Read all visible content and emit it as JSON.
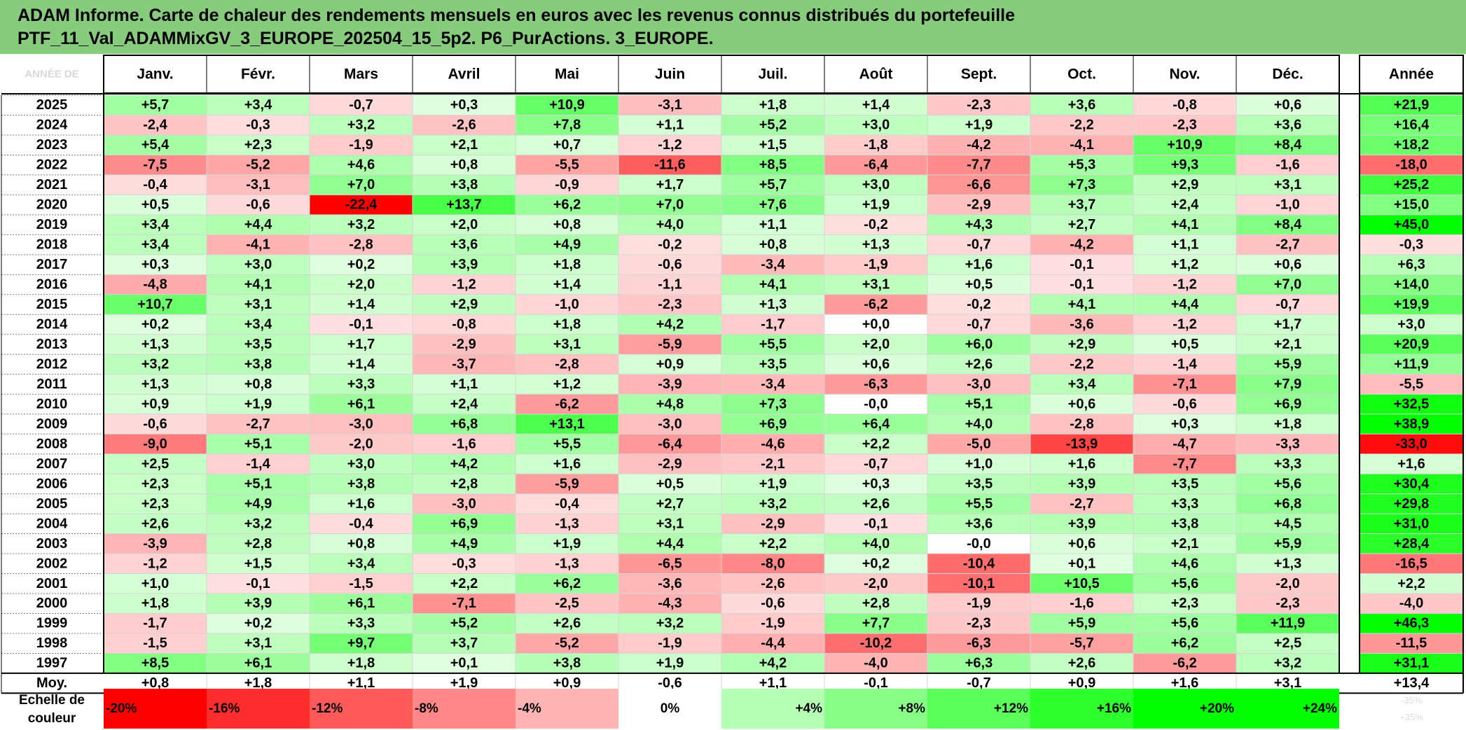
{
  "title": {
    "line1": "ADAM Informe. Carte de chaleur des rendements mensuels en euros avec les revenus connus distribués du portefeuille",
    "line2": "PTF_11_Val_ADAMMixGV_3_EUROPE_202504_15_5p2. P6_PurActions. 3_EUROPE."
  },
  "chart_data": {
    "type": "heatmap",
    "title": "ADAM Informe. Carte de chaleur des rendements mensuels en euros avec les revenus connus distribués du portefeuille PTF_11_Val_ADAMMixGV_3_EUROPE_202504_15_5p2. P6_PurActions. 3_EUROPE.",
    "header_label": "ANNÉE DE",
    "months": [
      "Janv.",
      "Févr.",
      "Mars",
      "Avril",
      "Mai",
      "Juin",
      "Juil.",
      "Août",
      "Sept.",
      "Oct.",
      "Nov.",
      "Déc."
    ],
    "year_header": "Année",
    "rows": [
      {
        "year": "2025",
        "values": [
          "+5,7",
          "+3,4",
          "-0,7",
          "+0,3",
          "+10,9",
          "-3,1",
          "+1,8",
          "+1,4",
          "-2,3",
          "+3,6",
          "-0,8",
          "+0,6"
        ],
        "annual": "+21,9"
      },
      {
        "year": "2024",
        "values": [
          "-2,4",
          "-0,3",
          "+3,2",
          "-2,6",
          "+7,8",
          "+1,1",
          "+5,2",
          "+3,0",
          "+1,9",
          "-2,2",
          "-2,3",
          "+3,6"
        ],
        "annual": "+16,4"
      },
      {
        "year": "2023",
        "values": [
          "+5,4",
          "+2,3",
          "-1,9",
          "+2,1",
          "+0,7",
          "-1,2",
          "+1,5",
          "-1,8",
          "-4,2",
          "-4,1",
          "+10,9",
          "+8,4"
        ],
        "annual": "+18,2"
      },
      {
        "year": "2022",
        "values": [
          "-7,5",
          "-5,2",
          "+4,6",
          "+0,8",
          "-5,5",
          "-11,6",
          "+8,5",
          "-6,4",
          "-7,7",
          "+5,3",
          "+9,3",
          "-1,6"
        ],
        "annual": "-18,0"
      },
      {
        "year": "2021",
        "values": [
          "-0,4",
          "-3,1",
          "+7,0",
          "+3,8",
          "-0,9",
          "+1,7",
          "+5,7",
          "+3,0",
          "-6,6",
          "+7,3",
          "+2,9",
          "+3,1"
        ],
        "annual": "+25,2"
      },
      {
        "year": "2020",
        "values": [
          "+0,5",
          "-0,6",
          "-22,4",
          "+13,7",
          "+6,2",
          "+7,0",
          "+7,6",
          "+1,9",
          "-2,9",
          "+3,7",
          "+2,4",
          "-1,0"
        ],
        "annual": "+15,0"
      },
      {
        "year": "2019",
        "values": [
          "+3,4",
          "+4,4",
          "+3,2",
          "+2,0",
          "+0,8",
          "+4,0",
          "+1,1",
          "-0,2",
          "+4,3",
          "+2,7",
          "+4,1",
          "+8,4"
        ],
        "annual": "+45,0"
      },
      {
        "year": "2018",
        "values": [
          "+3,4",
          "-4,1",
          "-2,8",
          "+3,6",
          "+4,9",
          "-0,2",
          "+0,8",
          "+1,3",
          "-0,7",
          "-4,2",
          "+1,1",
          "-2,7"
        ],
        "annual": "-0,3"
      },
      {
        "year": "2017",
        "values": [
          "+0,3",
          "+3,0",
          "+0,2",
          "+3,9",
          "+1,8",
          "-0,6",
          "-3,4",
          "-1,9",
          "+1,6",
          "-0,1",
          "+1,2",
          "+0,6"
        ],
        "annual": "+6,3"
      },
      {
        "year": "2016",
        "values": [
          "-4,8",
          "+4,1",
          "+2,0",
          "-1,2",
          "+1,4",
          "-1,1",
          "+4,1",
          "+3,1",
          "+0,5",
          "-0,1",
          "-1,2",
          "+7,0"
        ],
        "annual": "+14,0"
      },
      {
        "year": "2015",
        "values": [
          "+10,7",
          "+3,1",
          "+1,4",
          "+2,9",
          "-1,0",
          "-2,3",
          "+1,3",
          "-6,2",
          "-0,2",
          "+4,1",
          "+4,4",
          "-0,7"
        ],
        "annual": "+19,9"
      },
      {
        "year": "2014",
        "values": [
          "+0,2",
          "+3,4",
          "-0,1",
          "-0,8",
          "+1,8",
          "+4,2",
          "-1,7",
          "+0,0",
          "-0,7",
          "-3,6",
          "-1,2",
          "+1,7"
        ],
        "annual": "+3,0"
      },
      {
        "year": "2013",
        "values": [
          "+1,3",
          "+3,5",
          "+1,7",
          "-2,9",
          "+3,1",
          "-5,9",
          "+5,5",
          "+2,0",
          "+6,0",
          "+2,9",
          "+0,5",
          "+2,1"
        ],
        "annual": "+20,9"
      },
      {
        "year": "2012",
        "values": [
          "+3,2",
          "+3,8",
          "+1,4",
          "-3,7",
          "-2,8",
          "+0,9",
          "+3,5",
          "+0,6",
          "+2,6",
          "-2,2",
          "-1,4",
          "+5,9"
        ],
        "annual": "+11,9"
      },
      {
        "year": "2011",
        "values": [
          "+1,3",
          "+0,8",
          "+3,3",
          "+1,1",
          "+1,2",
          "-3,9",
          "-3,4",
          "-6,3",
          "-3,0",
          "+3,4",
          "-7,1",
          "+7,9"
        ],
        "annual": "-5,5"
      },
      {
        "year": "2010",
        "values": [
          "+0,9",
          "+1,9",
          "+6,1",
          "+2,4",
          "-6,2",
          "+4,8",
          "+7,3",
          "-0,0",
          "+5,1",
          "+0,6",
          "-0,6",
          "+6,9"
        ],
        "annual": "+32,5"
      },
      {
        "year": "2009",
        "values": [
          "-0,6",
          "-2,7",
          "-3,0",
          "+6,8",
          "+13,1",
          "-3,0",
          "+6,9",
          "+6,4",
          "+4,0",
          "-2,8",
          "+0,3",
          "+1,8"
        ],
        "annual": "+38,9"
      },
      {
        "year": "2008",
        "values": [
          "-9,0",
          "+5,1",
          "-2,0",
          "-1,6",
          "+5,5",
          "-6,4",
          "-4,6",
          "+2,2",
          "-5,0",
          "-13,9",
          "-4,7",
          "-3,3"
        ],
        "annual": "-33,0"
      },
      {
        "year": "2007",
        "values": [
          "+2,5",
          "-1,4",
          "+3,0",
          "+4,2",
          "+1,6",
          "-2,9",
          "-2,1",
          "-0,7",
          "+1,0",
          "+1,6",
          "-7,7",
          "+3,3"
        ],
        "annual": "+1,6"
      },
      {
        "year": "2006",
        "values": [
          "+2,3",
          "+5,1",
          "+3,8",
          "+2,8",
          "-5,9",
          "+0,5",
          "+1,9",
          "+0,3",
          "+3,5",
          "+3,9",
          "+3,5",
          "+5,6"
        ],
        "annual": "+30,4"
      },
      {
        "year": "2005",
        "values": [
          "+2,3",
          "+4,9",
          "+1,6",
          "-3,0",
          "-0,4",
          "+2,7",
          "+3,2",
          "+2,6",
          "+5,5",
          "-2,7",
          "+3,3",
          "+6,8"
        ],
        "annual": "+29,8"
      },
      {
        "year": "2004",
        "values": [
          "+2,6",
          "+3,2",
          "-0,4",
          "+6,9",
          "-1,3",
          "+3,1",
          "-2,9",
          "-0,1",
          "+3,6",
          "+3,9",
          "+3,8",
          "+4,5"
        ],
        "annual": "+31,0"
      },
      {
        "year": "2003",
        "values": [
          "-3,9",
          "+2,8",
          "+0,8",
          "+4,9",
          "+1,9",
          "+4,4",
          "+2,2",
          "+4,0",
          "-0,0",
          "+0,6",
          "+2,1",
          "+5,9"
        ],
        "annual": "+28,4"
      },
      {
        "year": "2002",
        "values": [
          "-1,2",
          "+1,5",
          "+3,4",
          "-0,3",
          "-1,3",
          "-6,5",
          "-8,0",
          "+0,2",
          "-10,4",
          "+0,1",
          "+4,6",
          "+1,3"
        ],
        "annual": "-16,5"
      },
      {
        "year": "2001",
        "values": [
          "+1,0",
          "-0,1",
          "-1,5",
          "+2,2",
          "+6,2",
          "-3,6",
          "-2,6",
          "-2,0",
          "-10,1",
          "+10,5",
          "+5,6",
          "-2,0"
        ],
        "annual": "+2,2"
      },
      {
        "year": "2000",
        "values": [
          "+1,8",
          "+3,9",
          "+6,1",
          "-7,1",
          "-2,5",
          "-4,3",
          "-0,6",
          "+2,8",
          "-1,9",
          "-1,6",
          "+2,3",
          "-2,3"
        ],
        "annual": "-4,0"
      },
      {
        "year": "1999",
        "values": [
          "-1,7",
          "+0,2",
          "+3,3",
          "+5,2",
          "+2,6",
          "+3,2",
          "-1,9",
          "+7,7",
          "-2,3",
          "+5,9",
          "+5,6",
          "+11,9"
        ],
        "annual": "+46,3"
      },
      {
        "year": "1998",
        "values": [
          "-1,5",
          "+3,1",
          "+9,7",
          "+3,7",
          "-5,2",
          "-1,9",
          "-4,4",
          "-10,2",
          "-6,3",
          "-5,7",
          "+6,2",
          "+2,5"
        ],
        "annual": "-11,5"
      },
      {
        "year": "1997",
        "values": [
          "+8,5",
          "+6,1",
          "+1,8",
          "+0,1",
          "+3,8",
          "+1,9",
          "+4,2",
          "-4,0",
          "+6,3",
          "+2,6",
          "-6,2",
          "+3,2"
        ],
        "annual": "+31,1"
      }
    ],
    "average": {
      "label": "Moy.",
      "values": [
        "+0,8",
        "+1,8",
        "+1,1",
        "+1,9",
        "+0,9",
        "-0,6",
        "+1,1",
        "-0,1",
        "-0,7",
        "+0,9",
        "+1,6",
        "+3,1"
      ],
      "annual": "+13,4"
    },
    "scale": {
      "label_line1": "Echelle de",
      "label_line2": "couleur",
      "entries": [
        {
          "label": "-20%",
          "value": -20
        },
        {
          "label": "-16%",
          "value": -16
        },
        {
          "label": "-12%",
          "value": -12
        },
        {
          "label": "-8%",
          "value": -8
        },
        {
          "label": "-4%",
          "value": -4
        },
        {
          "label": "0%",
          "value": 0
        },
        {
          "label": "+4%",
          "value": 4
        },
        {
          "label": "+8%",
          "value": 8
        },
        {
          "label": "+12%",
          "value": 12
        },
        {
          "label": "+16%",
          "value": 16
        },
        {
          "label": "+20%",
          "value": 20
        },
        {
          "label": "+24%",
          "value": 24
        }
      ],
      "annual_range_line1": "-35%",
      "annual_range_line2": "+35%",
      "monthly_saturation": 20,
      "annual_saturation": 35
    },
    "colors": {
      "negative": "#ff0000",
      "positive": "#00ff00",
      "neutral": "#ffffff",
      "title_band": "#86cc7c"
    }
  }
}
